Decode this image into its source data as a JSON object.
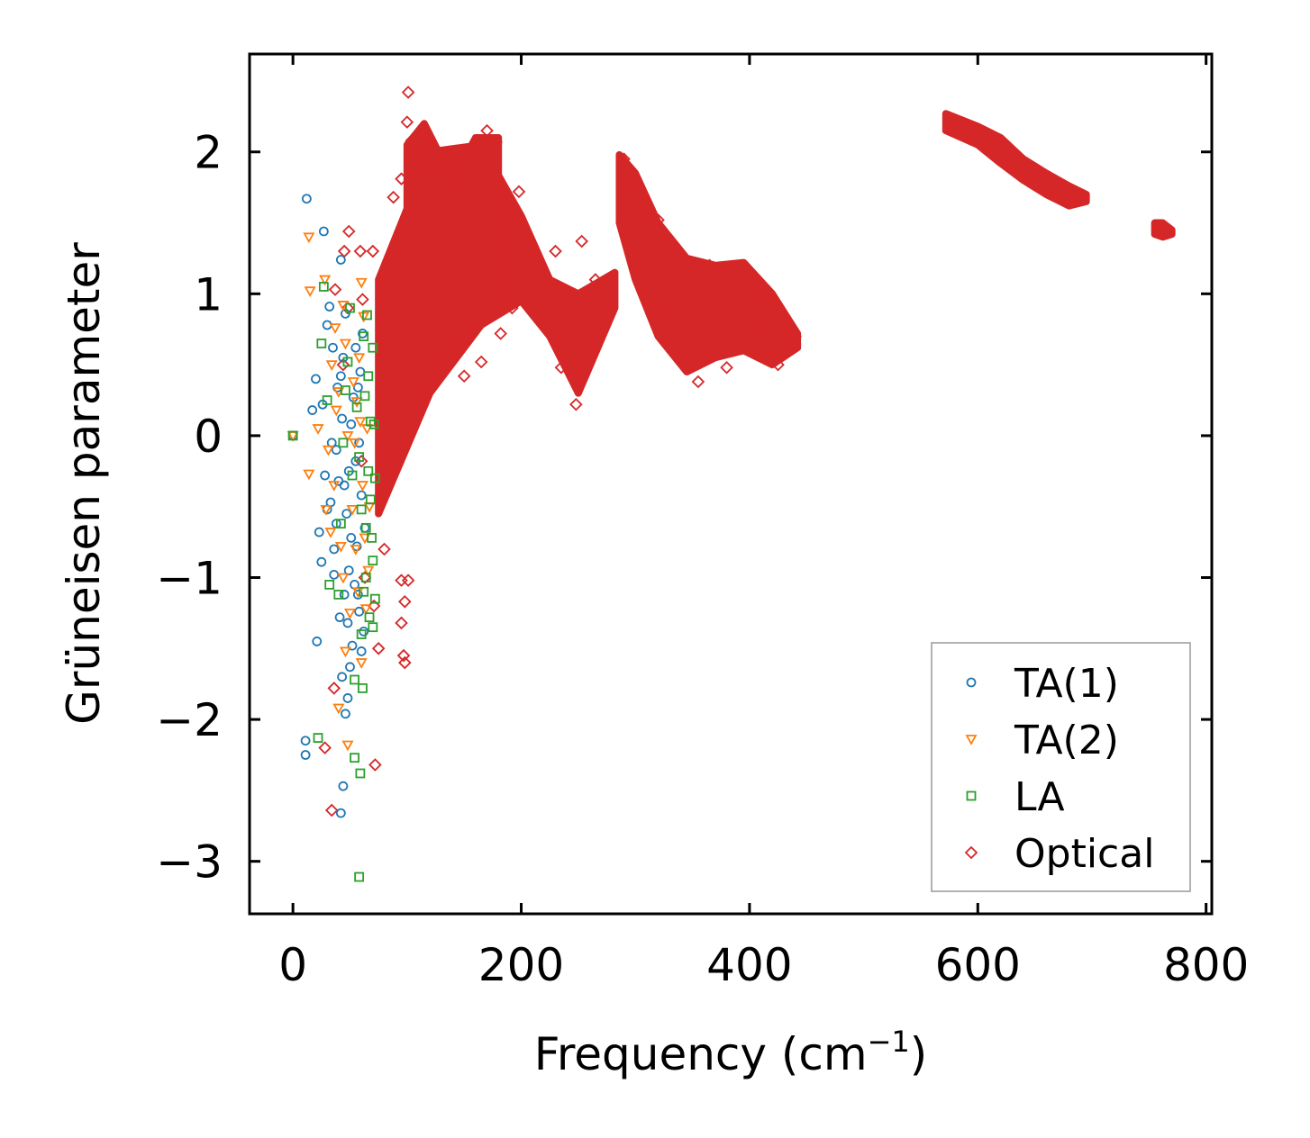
{
  "chart_data": {
    "type": "scatter",
    "xlabel": "Frequency (cm",
    "xlabel_sup": "−1",
    "xlabel_close": ")",
    "ylabel": "Grüneisen parameter",
    "xlim": [
      -38,
      805
    ],
    "ylim": [
      -3.37,
      2.69
    ],
    "xticks": [
      0,
      200,
      400,
      600,
      800
    ],
    "xtick_labels": [
      "0",
      "200",
      "400",
      "600",
      "800"
    ],
    "yticks": [
      -3,
      -2,
      -1,
      0,
      1,
      2
    ],
    "ytick_labels": [
      "−3",
      "−2",
      "−1",
      "0",
      "1",
      "2"
    ],
    "grid": false,
    "legend_position": "lower-right",
    "series": [
      {
        "name": "TA(1)",
        "marker": "circle",
        "color": "#1f77b4",
        "points": [
          [
            0,
            0
          ],
          [
            12,
            1.67
          ],
          [
            27,
            1.44
          ],
          [
            42,
            1.24
          ],
          [
            11,
            -2.15
          ],
          [
            11,
            -2.25
          ],
          [
            21,
            -1.45
          ],
          [
            23,
            -0.68
          ],
          [
            25,
            -0.89
          ],
          [
            20,
            0.4
          ],
          [
            17,
            0.18
          ],
          [
            30,
            0.78
          ],
          [
            32,
            0.91
          ],
          [
            35,
            0.62
          ],
          [
            33,
            -0.47
          ],
          [
            36,
            -0.8
          ],
          [
            38,
            -0.1
          ],
          [
            40,
            -0.32
          ],
          [
            41,
            -1.28
          ],
          [
            43,
            -1.7
          ],
          [
            44,
            -2.47
          ],
          [
            42,
            -2.66
          ],
          [
            46,
            -1.96
          ],
          [
            48,
            -1.85
          ],
          [
            50,
            -1.63
          ],
          [
            45,
            -1.12
          ],
          [
            47,
            -0.55
          ],
          [
            49,
            -0.25
          ],
          [
            51,
            0.08
          ],
          [
            53,
            0.27
          ],
          [
            44,
            0.55
          ],
          [
            46,
            0.86
          ],
          [
            55,
            0.62
          ],
          [
            57,
            0.34
          ],
          [
            58,
            -0.05
          ],
          [
            60,
            -0.42
          ],
          [
            56,
            -0.78
          ],
          [
            54,
            -1.05
          ],
          [
            58,
            -1.24
          ],
          [
            60,
            -1.52
          ],
          [
            62,
            -1.38
          ],
          [
            48,
            -1.32
          ],
          [
            52,
            -1.48
          ],
          [
            38,
            -0.62
          ],
          [
            34,
            -0.05
          ],
          [
            30,
            -0.52
          ],
          [
            28,
            -0.28
          ],
          [
            26,
            0.22
          ],
          [
            39,
            0.34
          ],
          [
            43,
            0.12
          ],
          [
            59,
            0.45
          ],
          [
            61,
            0.72
          ],
          [
            49,
            -0.95
          ],
          [
            51,
            -0.72
          ],
          [
            55,
            -0.18
          ],
          [
            63,
            -0.65
          ],
          [
            57,
            -1.12
          ],
          [
            45,
            -0.35
          ],
          [
            42,
            0.42
          ],
          [
            36,
            -0.98
          ]
        ]
      },
      {
        "name": "TA(2)",
        "marker": "triangle-down",
        "color": "#ff7f0e",
        "points": [
          [
            0,
            0
          ],
          [
            14,
            1.4
          ],
          [
            15,
            1.02
          ],
          [
            28,
            1.1
          ],
          [
            22,
            0.05
          ],
          [
            14,
            -0.27
          ],
          [
            29,
            -0.52
          ],
          [
            31,
            -0.1
          ],
          [
            34,
            0.5
          ],
          [
            37,
            0.76
          ],
          [
            40,
            0.31
          ],
          [
            42,
            -0.78
          ],
          [
            44,
            -1.0
          ],
          [
            46,
            -1.52
          ],
          [
            48,
            -2.18
          ],
          [
            40,
            -1.92
          ],
          [
            50,
            -1.25
          ],
          [
            52,
            -0.52
          ],
          [
            54,
            -0.05
          ],
          [
            56,
            0.24
          ],
          [
            58,
            0.55
          ],
          [
            60,
            1.08
          ],
          [
            62,
            0.84
          ],
          [
            59,
            0.1
          ],
          [
            61,
            -0.35
          ],
          [
            63,
            -0.72
          ],
          [
            57,
            -1.1
          ],
          [
            60,
            -1.6
          ],
          [
            64,
            -1.22
          ],
          [
            66,
            -0.95
          ],
          [
            55,
            -0.8
          ],
          [
            48,
            0.0
          ],
          [
            46,
            0.65
          ],
          [
            44,
            0.92
          ],
          [
            38,
            0.18
          ],
          [
            36,
            -0.35
          ],
          [
            33,
            -0.68
          ],
          [
            53,
            0.38
          ],
          [
            65,
            0.05
          ],
          [
            67,
            -0.5
          ]
        ]
      },
      {
        "name": "LA",
        "marker": "square",
        "color": "#2ca02c",
        "points": [
          [
            0,
            0
          ],
          [
            22,
            -2.13
          ],
          [
            25,
            0.65
          ],
          [
            27,
            1.05
          ],
          [
            30,
            0.25
          ],
          [
            32,
            -1.05
          ],
          [
            40,
            -1.12
          ],
          [
            42,
            -0.62
          ],
          [
            44,
            -0.05
          ],
          [
            46,
            0.32
          ],
          [
            48,
            0.52
          ],
          [
            50,
            0.9
          ],
          [
            52,
            -0.28
          ],
          [
            54,
            -1.72
          ],
          [
            54,
            -2.27
          ],
          [
            59,
            -2.38
          ],
          [
            58,
            -3.11
          ],
          [
            61,
            -1.78
          ],
          [
            60,
            -1.4
          ],
          [
            62,
            -1.1
          ],
          [
            64,
            -0.65
          ],
          [
            66,
            -0.25
          ],
          [
            68,
            0.1
          ],
          [
            70,
            0.62
          ],
          [
            66,
            0.42
          ],
          [
            68,
            -0.45
          ],
          [
            70,
            -0.88
          ],
          [
            72,
            -1.15
          ],
          [
            70,
            -1.35
          ],
          [
            72,
            -0.3
          ],
          [
            65,
            0.85
          ],
          [
            62,
            0.7
          ],
          [
            56,
            0.2
          ],
          [
            58,
            -0.15
          ],
          [
            60,
            -0.52
          ],
          [
            64,
            -1.0
          ],
          [
            67,
            -1.28
          ],
          [
            63,
            0.28
          ],
          [
            69,
            -0.72
          ],
          [
            71,
            0.08
          ]
        ]
      },
      {
        "name": "Optical",
        "marker": "diamond",
        "color": "#d62728",
        "scatter_points": [
          [
            101,
            2.42
          ],
          [
            100,
            2.21
          ],
          [
            104,
            2.08
          ],
          [
            95,
            1.81
          ],
          [
            88,
            1.68
          ],
          [
            49,
            1.44
          ],
          [
            59,
            1.3
          ],
          [
            45,
            1.3
          ],
          [
            70,
            1.3
          ],
          [
            37,
            1.03
          ],
          [
            48,
            0.9
          ],
          [
            61,
            0.96
          ],
          [
            44,
            0.5
          ],
          [
            36,
            -1.78
          ],
          [
            34,
            -2.64
          ],
          [
            28,
            -2.2
          ],
          [
            72,
            -2.32
          ],
          [
            97,
            -1.55
          ],
          [
            98,
            -1.6
          ],
          [
            95,
            -1.32
          ],
          [
            98,
            -1.17
          ],
          [
            101,
            -1.02
          ],
          [
            95,
            -1.02
          ],
          [
            75,
            -1.5
          ],
          [
            63,
            -1.0
          ],
          [
            71,
            -1.2
          ],
          [
            60,
            -0.18
          ],
          [
            80,
            -0.15
          ],
          [
            80,
            -0.8
          ],
          [
            110,
            0.3
          ],
          [
            150,
            0.42
          ],
          [
            165,
            0.52
          ],
          [
            182,
            0.72
          ],
          [
            192,
            0.9
          ],
          [
            210,
            1.17
          ],
          [
            235,
            0.48
          ],
          [
            248,
            0.22
          ],
          [
            265,
            1.1
          ],
          [
            290,
            1.95
          ],
          [
            300,
            1.72
          ],
          [
            320,
            1.52
          ],
          [
            365,
            1.2
          ],
          [
            402,
            1.02
          ],
          [
            425,
            0.5
          ],
          [
            440,
            0.7
          ],
          [
            380,
            0.48
          ],
          [
            355,
            0.38
          ],
          [
            120,
            1.9
          ],
          [
            140,
            1.72
          ],
          [
            115,
            2.0
          ],
          [
            108,
            1.95
          ],
          [
            130,
            0.6
          ],
          [
            150,
            1.82
          ],
          [
            170,
            2.15
          ],
          [
            178,
            2.07
          ],
          [
            198,
            1.72
          ],
          [
            230,
            1.3
          ],
          [
            253,
            1.37
          ],
          [
            320,
            0.85
          ],
          [
            405,
            0.75
          ]
        ],
        "bands": [
          {
            "x": [
              75,
              120,
              165,
              200,
              225,
              250,
              282
            ],
            "upper": [
              1.1,
              2.0,
              2.05,
              1.55,
              1.1,
              1.0,
              1.15
            ],
            "lower": [
              -0.55,
              0.3,
              0.78,
              0.95,
              0.7,
              0.3,
              0.9
            ]
          },
          {
            "x": [
              100,
              115,
              140,
              160,
              180
            ],
            "upper": [
              2.05,
              2.2,
              1.8,
              2.1,
              2.1
            ],
            "lower": [
              0.1,
              0.5,
              0.6,
              0.8,
              0.9
            ]
          },
          {
            "x": [
              286,
              300,
              320,
              345,
              370,
              395,
              420,
              442
            ],
            "upper": [
              1.98,
              1.85,
              1.5,
              1.25,
              1.2,
              1.22,
              1.0,
              0.72
            ],
            "lower": [
              1.5,
              1.1,
              0.7,
              0.45,
              0.55,
              0.6,
              0.5,
              0.62
            ]
          },
          {
            "x": [
              572,
              600,
              620,
              640,
              660,
              680,
              695
            ],
            "upper": [
              2.27,
              2.18,
              2.1,
              1.95,
              1.85,
              1.76,
              1.7
            ],
            "lower": [
              2.15,
              2.05,
              1.92,
              1.8,
              1.7,
              1.62,
              1.65
            ]
          },
          {
            "x": [
              755,
              762,
              770
            ],
            "upper": [
              1.5,
              1.5,
              1.45
            ],
            "lower": [
              1.42,
              1.4,
              1.42
            ]
          }
        ]
      }
    ]
  }
}
